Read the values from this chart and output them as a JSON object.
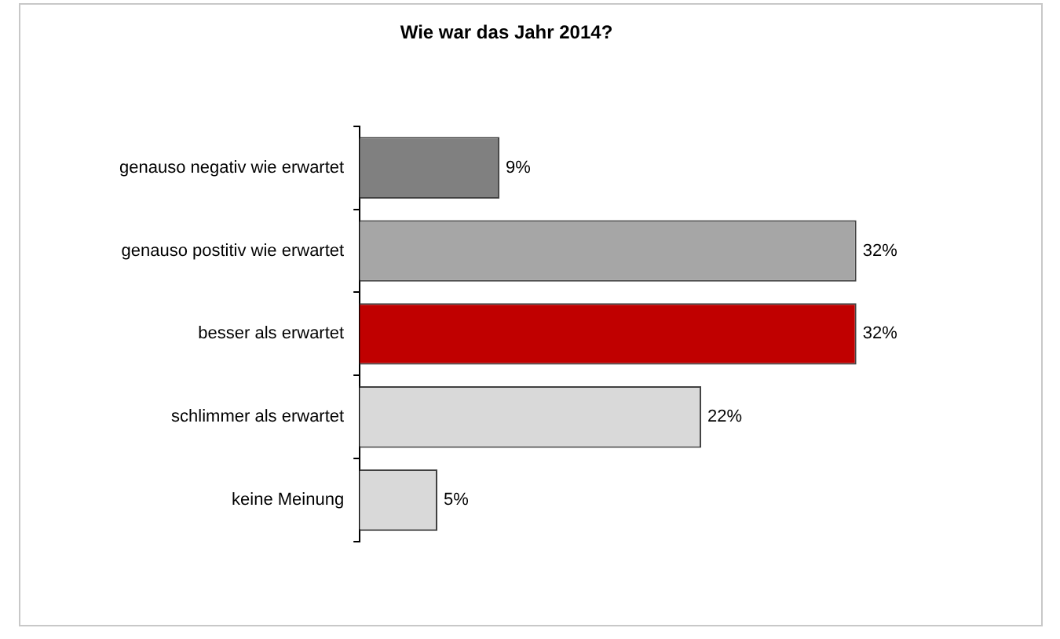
{
  "chart_data": {
    "type": "bar",
    "orientation": "horizontal",
    "title": "Wie war das Jahr 2014?",
    "categories": [
      "genauso negativ wie erwartet",
      "genauso postitiv wie erwartet",
      "besser als erwartet",
      "schlimmer als erwartet",
      "keine Meinung"
    ],
    "values": [
      9,
      32,
      32,
      22,
      5
    ],
    "colors": [
      "#808080",
      "#a6a6a6",
      "#c00000",
      "#d9d9d9",
      "#d9d9d9"
    ],
    "value_labels": [
      "9%",
      "32%",
      "32%",
      "22%",
      "5%"
    ],
    "tick_labels": "y",
    "legend": false
  }
}
